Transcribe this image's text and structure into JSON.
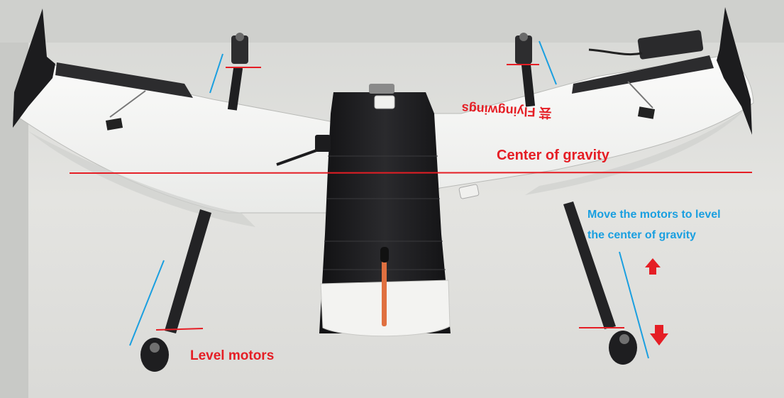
{
  "annotations": {
    "center_of_gravity": "Center of gravity",
    "level_motors": "Level motors",
    "move_motors_line1": "Move the motors to level",
    "move_motors_line2": "the center of gravity"
  },
  "wing_marking": "芸 Flyingwings",
  "colors": {
    "annotation_red": "#e51e25",
    "annotation_blue": "#1a9fe0",
    "wing_foam": "#f4f5f3",
    "carbon_black": "#1b1b1d",
    "table_background": "#dcdcd9"
  },
  "icons": [
    "arrow-up-icon",
    "arrow-down-icon"
  ]
}
